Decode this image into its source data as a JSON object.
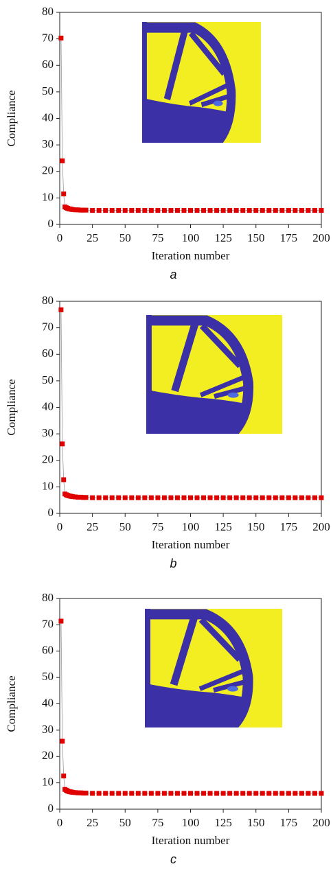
{
  "chart_data": [
    {
      "type": "line",
      "caption": "a",
      "x_label": "Iteration number",
      "y_label": "Compliance",
      "color": "#e00000",
      "xlim": [
        0,
        200
      ],
      "xticks": [
        0,
        25,
        50,
        75,
        100,
        125,
        150,
        175,
        200
      ],
      "ylim": [
        0,
        80
      ],
      "yticks": [
        0,
        10,
        20,
        30,
        40,
        50,
        60,
        70,
        80
      ],
      "x": [
        1,
        2,
        3,
        4,
        5,
        6,
        7,
        8,
        9,
        10,
        12,
        14,
        16,
        18,
        20,
        25,
        30,
        35,
        40,
        45,
        50,
        55,
        60,
        65,
        70,
        75,
        80,
        85,
        90,
        95,
        100,
        105,
        110,
        115,
        120,
        125,
        130,
        135,
        140,
        145,
        150,
        155,
        160,
        165,
        170,
        175,
        180,
        185,
        190,
        195,
        200
      ],
      "values": [
        70.3,
        24.0,
        11.5,
        6.6,
        6.3,
        6.1,
        5.9,
        5.8,
        5.7,
        5.6,
        5.5,
        5.5,
        5.4,
        5.4,
        5.4,
        5.3,
        5.3,
        5.3,
        5.3,
        5.3,
        5.3,
        5.3,
        5.3,
        5.3,
        5.3,
        5.3,
        5.3,
        5.3,
        5.3,
        5.3,
        5.3,
        5.3,
        5.3,
        5.3,
        5.3,
        5.3,
        5.3,
        5.3,
        5.3,
        5.3,
        5.3,
        5.3,
        5.3,
        5.3,
        5.3,
        5.3,
        5.3,
        5.3,
        5.3,
        5.3,
        5.3
      ]
    },
    {
      "type": "line",
      "caption": "b",
      "x_label": "Iteration number",
      "y_label": "Compliance",
      "color": "#e00000",
      "xlim": [
        0,
        200
      ],
      "xticks": [
        0,
        25,
        50,
        75,
        100,
        125,
        150,
        175,
        200
      ],
      "ylim": [
        0,
        80
      ],
      "yticks": [
        0,
        10,
        20,
        30,
        40,
        50,
        60,
        70,
        80
      ],
      "x": [
        1,
        2,
        3,
        4,
        5,
        6,
        7,
        8,
        9,
        10,
        12,
        14,
        16,
        18,
        20,
        25,
        30,
        35,
        40,
        45,
        50,
        55,
        60,
        65,
        70,
        75,
        80,
        85,
        90,
        95,
        100,
        105,
        110,
        115,
        120,
        125,
        130,
        135,
        140,
        145,
        150,
        155,
        160,
        165,
        170,
        175,
        180,
        185,
        190,
        195,
        200
      ],
      "values": [
        76.8,
        26.2,
        12.7,
        7.3,
        7.0,
        6.8,
        6.6,
        6.5,
        6.4,
        6.3,
        6.2,
        6.1,
        6.1,
        6.0,
        6.0,
        5.9,
        5.9,
        5.9,
        5.9,
        5.9,
        5.9,
        5.9,
        5.9,
        5.9,
        5.9,
        5.9,
        5.9,
        5.9,
        5.9,
        5.9,
        5.9,
        5.9,
        5.9,
        5.9,
        5.9,
        5.9,
        5.9,
        5.9,
        5.9,
        5.9,
        5.9,
        5.9,
        5.9,
        5.9,
        5.9,
        5.9,
        5.9,
        5.9,
        5.9,
        5.9,
        5.9
      ]
    },
    {
      "type": "line",
      "caption": "c",
      "x_label": "Iteration number",
      "y_label": "Compliance",
      "color": "#e00000",
      "xlim": [
        0,
        200
      ],
      "xticks": [
        0,
        25,
        50,
        75,
        100,
        125,
        150,
        175,
        200
      ],
      "ylim": [
        0,
        80
      ],
      "yticks": [
        0,
        10,
        20,
        30,
        40,
        50,
        60,
        70,
        80
      ],
      "x": [
        1,
        2,
        3,
        4,
        5,
        6,
        7,
        8,
        9,
        10,
        12,
        14,
        16,
        18,
        20,
        25,
        30,
        35,
        40,
        45,
        50,
        55,
        60,
        65,
        70,
        75,
        80,
        85,
        90,
        95,
        100,
        105,
        110,
        115,
        120,
        125,
        130,
        135,
        140,
        145,
        150,
        155,
        160,
        165,
        170,
        175,
        180,
        185,
        190,
        195,
        200
      ],
      "values": [
        71.4,
        25.8,
        12.6,
        7.5,
        7.2,
        6.9,
        6.7,
        6.6,
        6.5,
        6.4,
        6.3,
        6.2,
        6.2,
        6.1,
        6.1,
        6.0,
        6.0,
        6.0,
        6.0,
        6.0,
        6.0,
        6.0,
        6.0,
        6.0,
        6.0,
        6.0,
        6.0,
        6.0,
        6.0,
        6.0,
        6.0,
        6.0,
        6.0,
        6.0,
        6.0,
        6.0,
        6.0,
        6.0,
        6.0,
        6.0,
        6.0,
        6.0,
        6.0,
        6.0,
        6.0,
        6.0,
        6.0,
        6.0,
        6.0,
        6.0,
        6.0
      ]
    }
  ]
}
